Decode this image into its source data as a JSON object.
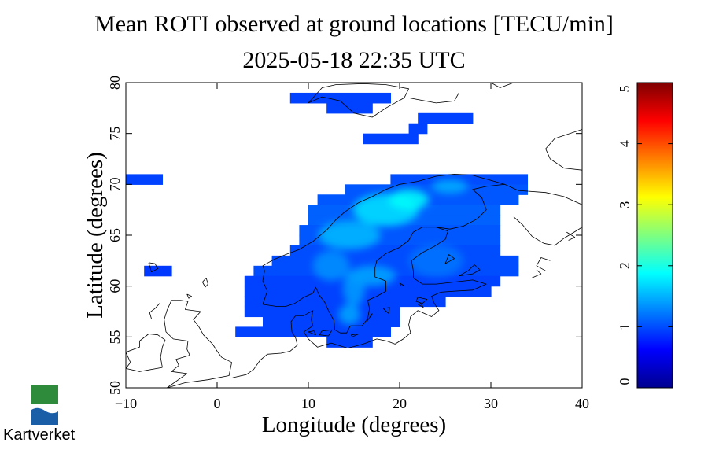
{
  "chart_data": {
    "type": "heatmap",
    "title": "Mean ROTI observed at ground locations [TECU/min]",
    "subtitle": "2025-05-18 22:35 UTC",
    "xlabel": "Longitude (degrees)",
    "ylabel": "Latitude (degrees)",
    "xlim": [
      -10,
      40
    ],
    "ylim": [
      50,
      80
    ],
    "xticks": [
      "−10",
      "0",
      "10",
      "20",
      "30",
      "40"
    ],
    "yticks": [
      "50",
      "55",
      "60",
      "65",
      "70",
      "75",
      "80"
    ],
    "grid": false,
    "colorbar": {
      "min": 0,
      "max": 5,
      "ticks": [
        "0",
        "1",
        "2",
        "3",
        "4",
        "5"
      ],
      "colors": [
        "#00008f",
        "#0000ff",
        "#007fff",
        "#00ffff",
        "#7fff7f",
        "#ffff00",
        "#ff7f00",
        "#ff0000",
        "#7f0000"
      ]
    },
    "cells": [
      {
        "lon0": 8,
        "lon1": 19,
        "lat0": 78,
        "lat1": 79,
        "roti": 0.95
      },
      {
        "lon0": 12,
        "lon1": 17,
        "lat0": 77,
        "lat1": 78,
        "roti": 0.95
      },
      {
        "lon0": 22,
        "lon1": 28,
        "lat0": 76,
        "lat1": 77,
        "roti": 0.95
      },
      {
        "lon0": 21,
        "lon1": 23,
        "lat0": 75,
        "lat1": 76,
        "roti": 0.95
      },
      {
        "lon0": 16,
        "lon1": 22,
        "lat0": 74,
        "lat1": 75,
        "roti": 0.95
      },
      {
        "lon0": -10,
        "lon1": -6,
        "lat0": 70,
        "lat1": 71,
        "roti": 0.95
      },
      {
        "lon0": -8,
        "lon1": -5,
        "lat0": 61,
        "lat1": 62,
        "roti": 0.9
      },
      {
        "lon0": 19,
        "lon1": 34,
        "lat0": 70,
        "lat1": 71,
        "roti": 1.0
      },
      {
        "lon0": 14,
        "lon1": 34,
        "lat0": 69,
        "lat1": 70,
        "roti": 1.05
      },
      {
        "lon0": 11,
        "lon1": 33,
        "lat0": 68,
        "lat1": 69,
        "roti": 1.05
      },
      {
        "lon0": 10,
        "lon1": 31,
        "lat0": 67,
        "lat1": 68,
        "roti": 1.1
      },
      {
        "lon0": 10,
        "lon1": 31,
        "lat0": 66,
        "lat1": 67,
        "roti": 1.1
      },
      {
        "lon0": 9,
        "lon1": 31,
        "lat0": 65,
        "lat1": 66,
        "roti": 1.05
      },
      {
        "lon0": 9,
        "lon1": 31,
        "lat0": 64,
        "lat1": 65,
        "roti": 1.05
      },
      {
        "lon0": 8,
        "lon1": 31,
        "lat0": 63,
        "lat1": 64,
        "roti": 1.0
      },
      {
        "lon0": 6,
        "lon1": 33,
        "lat0": 62,
        "lat1": 63,
        "roti": 1.0
      },
      {
        "lon0": 4,
        "lon1": 33,
        "lat0": 61,
        "lat1": 62,
        "roti": 1.0
      },
      {
        "lon0": 3,
        "lon1": 31,
        "lat0": 60,
        "lat1": 61,
        "roti": 0.95
      },
      {
        "lon0": 3,
        "lon1": 30,
        "lat0": 59,
        "lat1": 60,
        "roti": 0.95
      },
      {
        "lon0": 3,
        "lon1": 25,
        "lat0": 58,
        "lat1": 59,
        "roti": 0.95
      },
      {
        "lon0": 3,
        "lon1": 20,
        "lat0": 57,
        "lat1": 58,
        "roti": 0.95
      },
      {
        "lon0": 5,
        "lon1": 20,
        "lat0": 56,
        "lat1": 57,
        "roti": 0.95
      },
      {
        "lon0": 2,
        "lon1": 19,
        "lat0": 55,
        "lat1": 56,
        "roti": 0.95
      },
      {
        "lon0": 12,
        "lon1": 17,
        "lat0": 54,
        "lat1": 55,
        "roti": 0.95
      }
    ],
    "hotspots": [
      {
        "lon": 18.5,
        "lat": 67.5,
        "rx": 3.6,
        "ry": 1.6,
        "roti": 1.75
      },
      {
        "lon": 14.5,
        "lat": 65.0,
        "rx": 3.4,
        "ry": 1.4,
        "roti": 1.55
      },
      {
        "lon": 21.0,
        "lat": 68.5,
        "rx": 2.2,
        "ry": 1.0,
        "roti": 1.9
      },
      {
        "lon": 25.5,
        "lat": 69.8,
        "rx": 2.0,
        "ry": 0.7,
        "roti": 1.5
      },
      {
        "lon": 12.5,
        "lat": 62.0,
        "rx": 2.0,
        "ry": 1.5,
        "roti": 1.35
      },
      {
        "lon": 17.0,
        "lat": 61.0,
        "rx": 2.6,
        "ry": 1.0,
        "roti": 1.45
      },
      {
        "lon": 15.0,
        "lat": 59.8,
        "rx": 1.2,
        "ry": 1.8,
        "roti": 1.4
      },
      {
        "lon": 14.5,
        "lat": 57.2,
        "rx": 1.2,
        "ry": 1.0,
        "roti": 1.45
      },
      {
        "lon": 24.0,
        "lat": 62.5,
        "rx": 3.0,
        "ry": 1.6,
        "roti": 1.2
      }
    ],
    "coastlines": [
      [
        [
          5.0,
          58.2
        ],
        [
          5.5,
          59.5
        ],
        [
          5.0,
          60.5
        ],
        [
          5.2,
          61.5
        ],
        [
          5.0,
          62.0
        ],
        [
          6.2,
          62.6
        ],
        [
          7.5,
          63.1
        ],
        [
          9.0,
          63.6
        ],
        [
          10.5,
          64.4
        ],
        [
          12.0,
          65.5
        ],
        [
          13.0,
          66.5
        ],
        [
          14.0,
          67.3
        ],
        [
          15.5,
          68.2
        ],
        [
          17.0,
          68.8
        ],
        [
          18.5,
          69.5
        ],
        [
          20.0,
          70.0
        ],
        [
          22.0,
          70.3
        ],
        [
          24.0,
          70.8
        ],
        [
          26.0,
          71.0
        ],
        [
          28.0,
          70.9
        ],
        [
          30.0,
          70.4
        ],
        [
          31.5,
          70.0
        ]
      ],
      [
        [
          5.0,
          58.2
        ],
        [
          6.5,
          58.0
        ],
        [
          7.5,
          58.0
        ],
        [
          8.5,
          58.3
        ],
        [
          9.5,
          58.9
        ],
        [
          10.5,
          59.3
        ],
        [
          10.8,
          59.9
        ],
        [
          11.2,
          59.1
        ],
        [
          11.8,
          58.4
        ],
        [
          12.2,
          57.6
        ],
        [
          12.8,
          56.6
        ],
        [
          12.9,
          55.7
        ],
        [
          13.5,
          55.4
        ],
        [
          14.2,
          55.4
        ],
        [
          14.6,
          56.1
        ],
        [
          15.9,
          56.1
        ],
        [
          16.5,
          56.8
        ],
        [
          16.7,
          57.8
        ],
        [
          16.5,
          58.6
        ],
        [
          17.5,
          59.0
        ],
        [
          18.5,
          59.5
        ],
        [
          18.5,
          60.5
        ],
        [
          17.3,
          60.9
        ],
        [
          17.3,
          61.8
        ],
        [
          17.5,
          62.5
        ],
        [
          18.5,
          63.2
        ],
        [
          20.0,
          63.8
        ],
        [
          21.0,
          64.5
        ],
        [
          21.5,
          65.3
        ],
        [
          22.5,
          65.8
        ],
        [
          24.0,
          65.8
        ],
        [
          25.3,
          65.4
        ],
        [
          25.0,
          64.6
        ],
        [
          23.8,
          63.9
        ],
        [
          22.5,
          63.3
        ],
        [
          21.3,
          62.5
        ],
        [
          21.5,
          61.5
        ],
        [
          21.5,
          60.8
        ],
        [
          22.5,
          60.2
        ],
        [
          24.0,
          60.2
        ],
        [
          26.0,
          60.4
        ],
        [
          28.0,
          60.6
        ],
        [
          29.5,
          60.2
        ]
      ],
      [
        [
          24.0,
          65.8
        ],
        [
          25.5,
          65.6
        ],
        [
          27.0,
          65.9
        ],
        [
          28.5,
          66.6
        ],
        [
          29.5,
          67.5
        ],
        [
          29.0,
          68.7
        ],
        [
          28.0,
          69.5
        ],
        [
          29.5,
          69.8
        ],
        [
          31.5,
          70.0
        ]
      ],
      [
        [
          31.5,
          70.0
        ],
        [
          33.0,
          69.4
        ],
        [
          36.0,
          69.2
        ],
        [
          38.0,
          68.8
        ],
        [
          40.0,
          68.0
        ]
      ],
      [
        [
          32.5,
          66.8
        ],
        [
          33.5,
          66.0
        ],
        [
          34.5,
          64.9
        ],
        [
          35.8,
          64.2
        ],
        [
          37.0,
          64.0
        ],
        [
          38.0,
          64.7
        ],
        [
          39.5,
          65.5
        ],
        [
          40.0,
          65.8
        ]
      ],
      [
        [
          29.5,
          60.2
        ],
        [
          28.0,
          59.6
        ],
        [
          26.0,
          59.5
        ],
        [
          24.5,
          59.4
        ],
        [
          23.5,
          59.0
        ],
        [
          23.8,
          58.3
        ],
        [
          24.3,
          57.6
        ],
        [
          23.5,
          57.0
        ],
        [
          22.0,
          57.6
        ],
        [
          21.2,
          57.0
        ],
        [
          21.0,
          56.2
        ],
        [
          21.2,
          55.4
        ],
        [
          20.4,
          54.8
        ],
        [
          19.5,
          54.3
        ],
        [
          18.6,
          54.6
        ],
        [
          17.5,
          54.8
        ],
        [
          16.0,
          54.3
        ],
        [
          14.3,
          53.9
        ],
        [
          12.5,
          54.4
        ],
        [
          11.0,
          54.0
        ],
        [
          10.5,
          54.4
        ],
        [
          10.0,
          54.8
        ],
        [
          9.5,
          55.5
        ],
        [
          10.5,
          56.1
        ],
        [
          10.3,
          56.7
        ],
        [
          10.5,
          57.6
        ],
        [
          9.5,
          57.1
        ],
        [
          8.6,
          57.1
        ],
        [
          8.1,
          56.5
        ],
        [
          8.2,
          55.5
        ],
        [
          8.6,
          54.9
        ],
        [
          8.8,
          54.2
        ],
        [
          8.0,
          53.6
        ],
        [
          7.0,
          53.4
        ],
        [
          5.5,
          53.3
        ],
        [
          4.7,
          52.7
        ],
        [
          4.0,
          51.8
        ],
        [
          3.2,
          51.3
        ],
        [
          1.7,
          51.0
        ]
      ],
      [
        [
          -5.5,
          50.0
        ],
        [
          -3.5,
          50.5
        ],
        [
          -1.0,
          50.8
        ],
        [
          1.3,
          51.2
        ],
        [
          1.6,
          52.5
        ],
        [
          0.5,
          53.0
        ],
        [
          0.0,
          53.6
        ],
        [
          -0.5,
          54.3
        ],
        [
          -1.5,
          55.2
        ],
        [
          -2.0,
          56.0
        ],
        [
          -2.6,
          56.7
        ],
        [
          -1.8,
          57.5
        ],
        [
          -3.5,
          57.7
        ],
        [
          -3.2,
          58.5
        ],
        [
          -4.0,
          58.6
        ],
        [
          -5.0,
          58.6
        ],
        [
          -5.5,
          57.6
        ],
        [
          -5.8,
          56.7
        ],
        [
          -5.6,
          55.5
        ],
        [
          -4.8,
          54.8
        ],
        [
          -3.2,
          54.6
        ],
        [
          -3.3,
          53.8
        ],
        [
          -3.0,
          53.2
        ],
        [
          -4.5,
          52.8
        ],
        [
          -4.2,
          52.2
        ],
        [
          -5.0,
          51.6
        ],
        [
          -3.3,
          51.4
        ],
        [
          -5.5,
          50.0
        ]
      ],
      [
        [
          -6.0,
          52.0
        ],
        [
          -6.2,
          53.0
        ],
        [
          -6.0,
          54.0
        ],
        [
          -5.7,
          54.7
        ],
        [
          -6.5,
          55.2
        ],
        [
          -7.5,
          55.3
        ],
        [
          -8.5,
          54.6
        ],
        [
          -8.5,
          54.0
        ],
        [
          -10.0,
          53.5
        ],
        [
          -9.5,
          52.5
        ],
        [
          -10.0,
          51.9
        ],
        [
          -8.5,
          51.6
        ],
        [
          -6.0,
          52.0
        ]
      ],
      [
        [
          -7.5,
          62.3
        ],
        [
          -6.8,
          62.2
        ],
        [
          -6.5,
          61.7
        ],
        [
          -7.2,
          61.4
        ],
        [
          -7.5,
          62.3
        ]
      ],
      [
        [
          -6.3,
          58.3
        ],
        [
          -6.8,
          57.8
        ],
        [
          -7.4,
          57.4
        ],
        [
          -7.2,
          56.8
        ]
      ],
      [
        [
          -1.2,
          60.8
        ],
        [
          -1.0,
          60.2
        ],
        [
          -1.3,
          59.9
        ],
        [
          -1.6,
          60.4
        ],
        [
          -1.2,
          60.8
        ]
      ],
      [
        [
          -3.3,
          59.2
        ],
        [
          -2.8,
          59.0
        ],
        [
          -3.1,
          58.8
        ],
        [
          -3.3,
          59.2
        ]
      ],
      [
        [
          10.0,
          78.0
        ],
        [
          11.5,
          78.6
        ],
        [
          13.5,
          78.2
        ],
        [
          15.0,
          77.0
        ],
        [
          17.0,
          76.6
        ],
        [
          18.5,
          77.5
        ],
        [
          20.5,
          78.5
        ],
        [
          21.0,
          79.4
        ],
        [
          18.5,
          79.8
        ],
        [
          16.0,
          79.9
        ],
        [
          13.0,
          79.8
        ],
        [
          11.5,
          79.5
        ],
        [
          10.0,
          78.0
        ]
      ],
      [
        [
          21.0,
          78.5
        ],
        [
          24.0,
          78.0
        ],
        [
          26.0,
          78.2
        ],
        [
          26.5,
          79.0
        ]
      ],
      [
        [
          30.0,
          80.0
        ],
        [
          31.0,
          79.5
        ],
        [
          32.5,
          80.0
        ]
      ],
      [
        [
          40.0,
          75.4
        ],
        [
          37.0,
          74.5
        ],
        [
          36.0,
          73.5
        ],
        [
          36.5,
          72.5
        ],
        [
          38.0,
          71.6
        ],
        [
          40.0,
          71.4
        ]
      ],
      [
        [
          15.5,
          55.3
        ],
        [
          14.8,
          55.0
        ],
        [
          14.7,
          55.2
        ],
        [
          15.5,
          55.3
        ]
      ],
      [
        [
          18.2,
          57.8
        ],
        [
          18.8,
          57.3
        ],
        [
          18.9,
          57.9
        ],
        [
          18.2,
          57.8
        ]
      ],
      [
        [
          16.4,
          56.5
        ],
        [
          17.0,
          57.3
        ],
        [
          16.8,
          56.9
        ]
      ],
      [
        [
          10.0,
          55.5
        ],
        [
          10.8,
          55.2
        ],
        [
          10.6,
          55.6
        ],
        [
          10.0,
          55.5
        ]
      ],
      [
        [
          11.5,
          55.6
        ],
        [
          12.6,
          55.7
        ],
        [
          12.2,
          55.1
        ],
        [
          11.2,
          55.2
        ],
        [
          11.5,
          55.6
        ]
      ],
      [
        [
          22.0,
          58.9
        ],
        [
          23.0,
          58.7
        ],
        [
          22.5,
          58.3
        ],
        [
          21.8,
          58.5
        ],
        [
          22.0,
          58.9
        ]
      ],
      [
        [
          22.0,
          58.2
        ],
        [
          22.6,
          57.9
        ],
        [
          22.2,
          58.4
        ]
      ],
      [
        [
          20.0,
          60.3
        ],
        [
          20.4,
          60.1
        ],
        [
          20.2,
          60.0
        ],
        [
          20.0,
          60.3
        ]
      ],
      [
        [
          36.0,
          61.5
        ],
        [
          35.0,
          62.0
        ],
        [
          35.5,
          62.8
        ],
        [
          36.5,
          62.5
        ]
      ],
      [
        [
          34.5,
          60.8
        ],
        [
          35.5,
          61.2
        ],
        [
          35.0,
          61.6
        ]
      ],
      [
        [
          38.3,
          65.3
        ],
        [
          39.2,
          64.8
        ],
        [
          38.5,
          64.5
        ]
      ],
      [
        [
          26.5,
          61.0
        ],
        [
          27.5,
          61.5
        ],
        [
          28.2,
          62.1
        ],
        [
          28.8,
          61.6
        ],
        [
          28.0,
          61.2
        ],
        [
          26.5,
          61.0
        ]
      ],
      [
        [
          25.0,
          62.2
        ],
        [
          26.0,
          62.7
        ],
        [
          25.4,
          63.1
        ],
        [
          25.0,
          62.2
        ]
      ]
    ]
  }
}
